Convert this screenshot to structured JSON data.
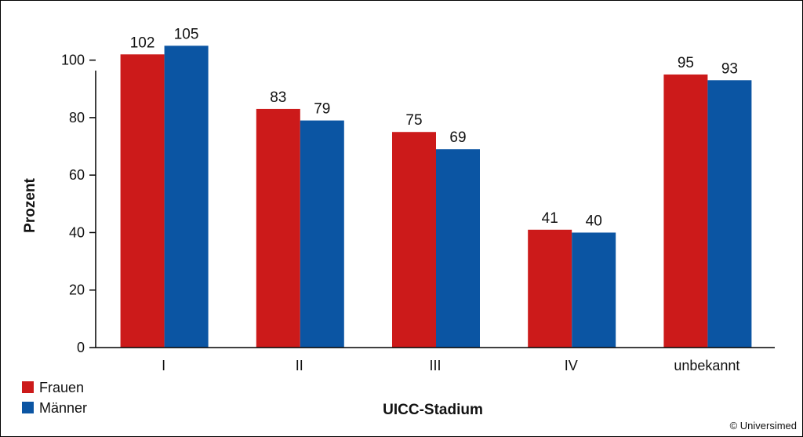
{
  "chart_data": {
    "type": "bar",
    "categories": [
      "I",
      "II",
      "III",
      "IV",
      "unbekannt"
    ],
    "series": [
      {
        "name": "Frauen",
        "color": "#cc1a1a",
        "values": [
          102,
          83,
          75,
          41,
          95
        ]
      },
      {
        "name": "Männer",
        "color": "#0b55a3",
        "values": [
          105,
          79,
          69,
          40,
          93
        ]
      }
    ],
    "xlabel": "UICC-Stadium",
    "ylabel": "Prozent",
    "ylim": [
      0,
      110
    ],
    "yticks": [
      0,
      20,
      40,
      60,
      80,
      100
    ],
    "grid": false,
    "legend_position": "bottom-left",
    "data_labels": true
  },
  "credit": "© Universimed"
}
